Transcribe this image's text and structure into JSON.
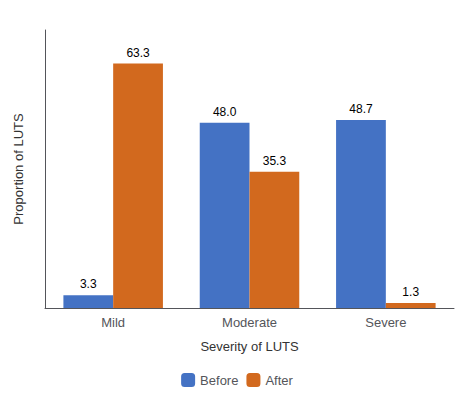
{
  "chart_data": {
    "type": "bar",
    "categories": [
      "Mild",
      "Moderate",
      "Severe"
    ],
    "series": [
      {
        "name": "Before",
        "color": "#4472C4",
        "values": [
          3.3,
          48.0,
          48.7
        ],
        "value_labels": [
          "3.3",
          "48.0",
          "48.7"
        ]
      },
      {
        "name": "After",
        "color": "#D2691E",
        "values": [
          63.3,
          35.3,
          1.3
        ],
        "value_labels": [
          "63.3",
          "35.3",
          "1.3"
        ]
      }
    ],
    "xlabel": "Severity of LUTS",
    "ylabel": "Proportion of LUTS",
    "ylim": [
      0,
      72
    ],
    "grid": false,
    "legend": "bottom",
    "data_labels": true,
    "tick_labels": "x"
  }
}
